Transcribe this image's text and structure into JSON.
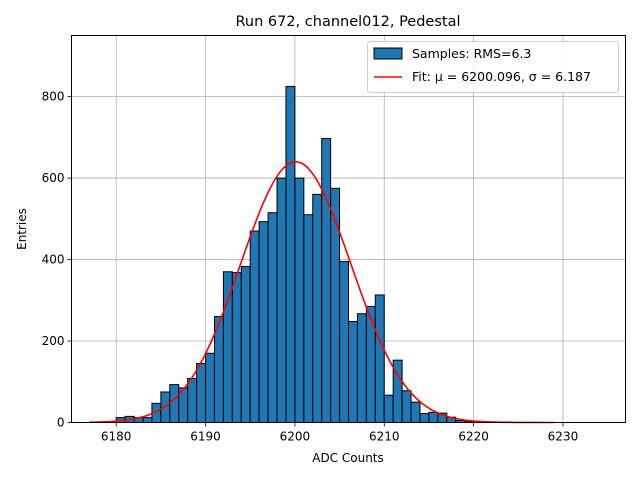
{
  "chart_data": {
    "type": "bar",
    "title": "Run 672, channel012, Pedestal",
    "xlabel": "ADC Counts",
    "ylabel": "Entries",
    "xlim": [
      6175,
      6237
    ],
    "ylim": [
      0,
      950
    ],
    "xticks": [
      6180,
      6190,
      6200,
      6210,
      6220,
      6230
    ],
    "yticks": [
      0,
      200,
      400,
      600,
      800
    ],
    "grid": true,
    "legend_position": "top-right",
    "bin_width": 1,
    "bins": [
      {
        "x": 6180,
        "value": 12
      },
      {
        "x": 6181,
        "value": 15
      },
      {
        "x": 6182,
        "value": 12
      },
      {
        "x": 6183,
        "value": 12
      },
      {
        "x": 6184,
        "value": 47
      },
      {
        "x": 6185,
        "value": 75
      },
      {
        "x": 6186,
        "value": 93
      },
      {
        "x": 6187,
        "value": 85
      },
      {
        "x": 6188,
        "value": 108
      },
      {
        "x": 6189,
        "value": 145
      },
      {
        "x": 6190,
        "value": 170
      },
      {
        "x": 6191,
        "value": 260
      },
      {
        "x": 6192,
        "value": 370
      },
      {
        "x": 6193,
        "value": 368
      },
      {
        "x": 6194,
        "value": 383
      },
      {
        "x": 6195,
        "value": 470
      },
      {
        "x": 6196,
        "value": 493
      },
      {
        "x": 6197,
        "value": 515
      },
      {
        "x": 6198,
        "value": 600
      },
      {
        "x": 6199,
        "value": 825
      },
      {
        "x": 6200,
        "value": 600
      },
      {
        "x": 6201,
        "value": 510
      },
      {
        "x": 6202,
        "value": 560
      },
      {
        "x": 6203,
        "value": 697
      },
      {
        "x": 6204,
        "value": 575
      },
      {
        "x": 6205,
        "value": 395
      },
      {
        "x": 6206,
        "value": 248
      },
      {
        "x": 6207,
        "value": 267
      },
      {
        "x": 6208,
        "value": 285
      },
      {
        "x": 6209,
        "value": 313
      },
      {
        "x": 6210,
        "value": 67
      },
      {
        "x": 6211,
        "value": 153
      },
      {
        "x": 6212,
        "value": 78
      },
      {
        "x": 6213,
        "value": 50
      },
      {
        "x": 6214,
        "value": 22
      },
      {
        "x": 6215,
        "value": 25
      },
      {
        "x": 6216,
        "value": 23
      },
      {
        "x": 6217,
        "value": 13
      },
      {
        "x": 6218,
        "value": 5
      },
      {
        "x": 6219,
        "value": 2
      }
    ],
    "series": [
      {
        "name": "Samples: RMS=6.3",
        "kind": "histogram",
        "color": "#1f77b4"
      },
      {
        "name": "Fit: μ = 6200.096, σ = 6.187",
        "kind": "gaussian",
        "color": "#ff0000",
        "mu": 6200.096,
        "sigma": 6.187,
        "amplitude": 640,
        "x_range": [
          6177,
          6229
        ]
      }
    ]
  }
}
